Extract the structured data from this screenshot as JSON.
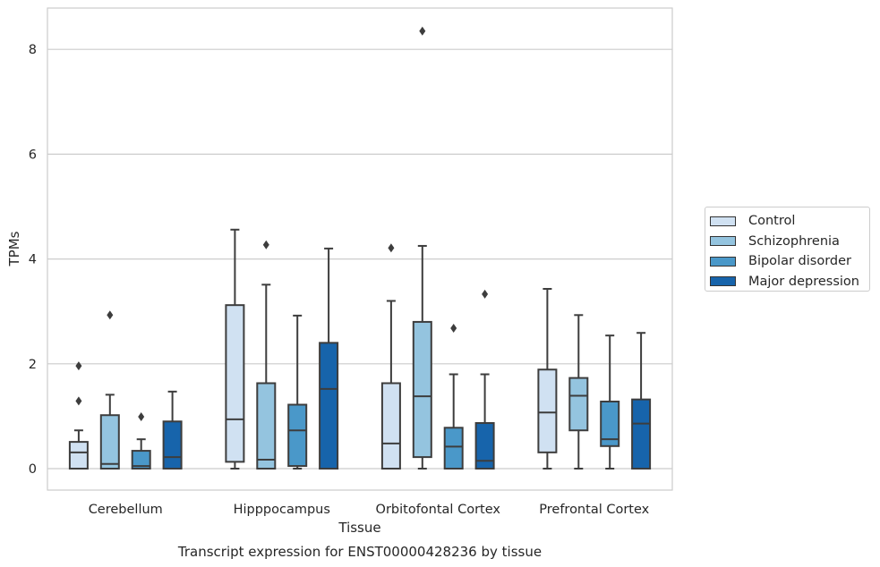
{
  "chart_data": {
    "type": "box",
    "xlabel": "Tissue",
    "ylabel": "TPMs",
    "caption": "Transcript expression for ENST00000428236 by tissue",
    "categories": [
      "Cerebellum",
      "Hipppocampus",
      "Orbitofontal Cortex",
      "Prefrontal Cortex"
    ],
    "yticks": [
      0,
      2,
      4,
      6,
      8
    ],
    "ylim": [
      -0.4,
      8.8
    ],
    "grid": "horizontal",
    "legend_position": "right",
    "series": [
      {
        "name": "Control",
        "color": "#d0e1f2",
        "boxes": [
          {
            "whisker_low": 0,
            "q1": 0,
            "median": 0.31,
            "q3": 0.51,
            "whisker_high": 0.73,
            "outliers": [
              1.29,
              1.96
            ]
          },
          {
            "whisker_low": 0,
            "q1": 0.13,
            "median": 0.94,
            "q3": 3.12,
            "whisker_high": 4.56,
            "outliers": []
          },
          {
            "whisker_low": 0,
            "q1": 0,
            "median": 0.48,
            "q3": 1.63,
            "whisker_high": 3.2,
            "outliers": [
              4.21
            ]
          },
          {
            "whisker_low": 0,
            "q1": 0.31,
            "median": 1.07,
            "q3": 1.89,
            "whisker_high": 3.43,
            "outliers": []
          }
        ]
      },
      {
        "name": "Schizophrenia",
        "color": "#94c4df",
        "boxes": [
          {
            "whisker_low": 0,
            "q1": 0,
            "median": 0.09,
            "q3": 1.02,
            "whisker_high": 1.41,
            "outliers": [
              2.93
            ]
          },
          {
            "whisker_low": 0,
            "q1": 0,
            "median": 0.17,
            "q3": 1.63,
            "whisker_high": 3.51,
            "outliers": [
              4.27
            ]
          },
          {
            "whisker_low": 0,
            "q1": 0.22,
            "median": 1.38,
            "q3": 2.8,
            "whisker_high": 4.25,
            "outliers": [
              8.35
            ]
          },
          {
            "whisker_low": 0,
            "q1": 0.73,
            "median": 1.39,
            "q3": 1.73,
            "whisker_high": 2.93,
            "outliers": []
          }
        ]
      },
      {
        "name": "Bipolar disorder",
        "color": "#4a98c9",
        "boxes": [
          {
            "whisker_low": 0,
            "q1": 0,
            "median": 0.05,
            "q3": 0.34,
            "whisker_high": 0.56,
            "outliers": [
              0.99
            ]
          },
          {
            "whisker_low": 0,
            "q1": 0.05,
            "median": 0.73,
            "q3": 1.22,
            "whisker_high": 2.92,
            "outliers": []
          },
          {
            "whisker_low": 0,
            "q1": 0,
            "median": 0.42,
            "q3": 0.78,
            "whisker_high": 1.8,
            "outliers": [
              2.68
            ]
          },
          {
            "whisker_low": 0,
            "q1": 0.43,
            "median": 0.56,
            "q3": 1.28,
            "whisker_high": 2.54,
            "outliers": []
          }
        ]
      },
      {
        "name": "Major depression",
        "color": "#1764ab",
        "boxes": [
          {
            "whisker_low": 0,
            "q1": 0,
            "median": 0.22,
            "q3": 0.9,
            "whisker_high": 1.47,
            "outliers": []
          },
          {
            "whisker_low": 0,
            "q1": 0,
            "median": 1.52,
            "q3": 2.4,
            "whisker_high": 4.2,
            "outliers": []
          },
          {
            "whisker_low": 0,
            "q1": 0,
            "median": 0.15,
            "q3": 0.87,
            "whisker_high": 1.8,
            "outliers": [
              3.33
            ]
          },
          {
            "whisker_low": 0,
            "q1": 0,
            "median": 0.86,
            "q3": 1.32,
            "whisker_high": 2.59,
            "outliers": []
          }
        ]
      }
    ]
  }
}
